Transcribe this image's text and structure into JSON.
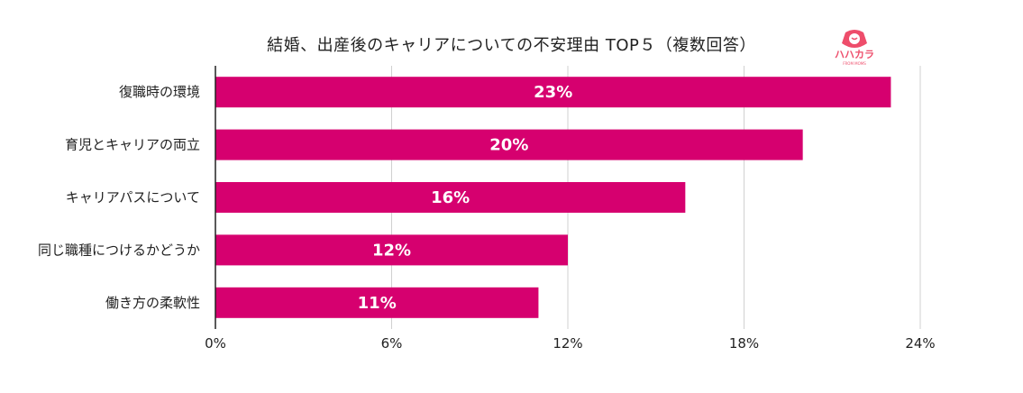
{
  "chart_data": {
    "type": "bar",
    "orientation": "horizontal",
    "title": "結婚、出産後のキャリアについての不安理由 TOP５（複数回答）",
    "categories": [
      "復職時の環境",
      "育児とキャリアの両立",
      "キャリアパスについて",
      "同じ職種につけるかどうか",
      "働き方の柔軟性"
    ],
    "values": [
      23,
      20,
      16,
      12,
      11
    ],
    "data_labels": [
      "23%",
      "20%",
      "16%",
      "12%",
      "11%"
    ],
    "xlim": [
      0,
      24
    ],
    "xticks": [
      0,
      6,
      12,
      18,
      24
    ],
    "xtick_labels": [
      "0%",
      "6%",
      "12%",
      "18%",
      "24%"
    ],
    "grid": true,
    "bar_color": "#d6006f",
    "xlabel": "",
    "ylabel": ""
  },
  "logo": {
    "text": "ハハカラ",
    "subtext": "FROM MOMS",
    "color": "#ee4d6b"
  }
}
